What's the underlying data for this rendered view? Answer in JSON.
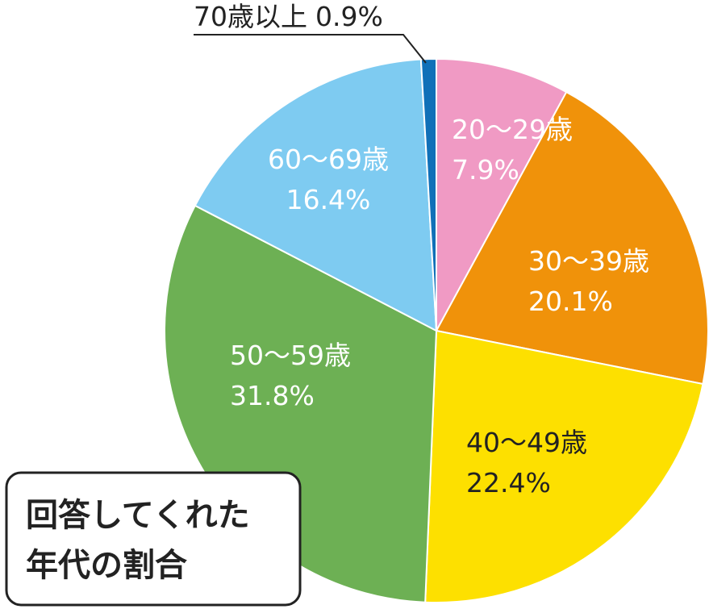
{
  "chart_data": {
    "type": "pie",
    "title": [
      "回答してくれた",
      "年代の割合"
    ],
    "categories": [
      "20〜29歳",
      "30〜39歳",
      "40〜49歳",
      "50〜59歳",
      "60〜69歳",
      "70歳以上"
    ],
    "values": [
      7.9,
      20.1,
      22.4,
      31.8,
      16.4,
      0.9
    ],
    "value_labels": [
      "7.9%",
      "20.1%",
      "22.4%",
      "31.8%",
      "16.4%",
      "0.9%"
    ],
    "colors": [
      "#f09ac4",
      "#f0920a",
      "#fde000",
      "#6db054",
      "#7ecbf1",
      "#1070b8"
    ]
  }
}
